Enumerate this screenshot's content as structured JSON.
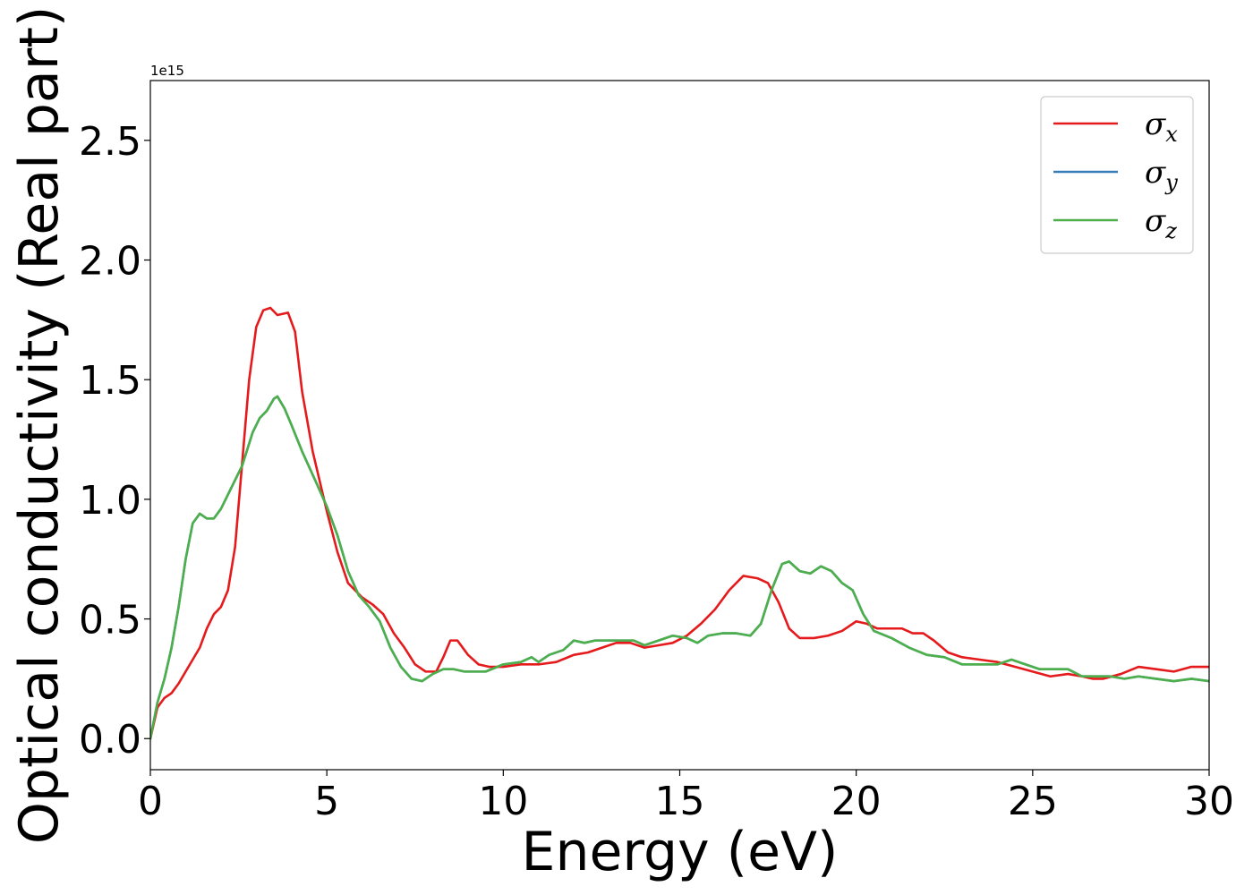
{
  "chart_data": {
    "type": "line",
    "xlabel": "Energy (eV)",
    "ylabel": "Optical conductivity (Real part)",
    "y_offset_label": "1e15",
    "xlim": [
      0,
      30
    ],
    "ylim": [
      -0.13,
      2.75
    ],
    "x_ticks": [
      0,
      5,
      10,
      15,
      20,
      25,
      30
    ],
    "x_tick_labels": [
      "0",
      "5",
      "10",
      "15",
      "20",
      "25",
      "30"
    ],
    "y_ticks": [
      0.0,
      0.5,
      1.0,
      1.5,
      2.0,
      2.5
    ],
    "y_tick_labels": [
      "0.0",
      "0.5",
      "1.0",
      "1.5",
      "2.0",
      "2.5"
    ],
    "grid": false,
    "legend_position": "top-right",
    "series": [
      {
        "name": "σx",
        "symbol": "σ",
        "subscript": "x",
        "color": "#e41a1c",
        "points": [
          [
            0,
            0
          ],
          [
            0.2,
            0.13
          ],
          [
            0.4,
            0.17
          ],
          [
            0.6,
            0.19
          ],
          [
            0.8,
            0.23
          ],
          [
            1.0,
            0.28
          ],
          [
            1.2,
            0.33
          ],
          [
            1.4,
            0.38
          ],
          [
            1.6,
            0.46
          ],
          [
            1.8,
            0.52
          ],
          [
            2.0,
            0.55
          ],
          [
            2.2,
            0.62
          ],
          [
            2.4,
            0.8
          ],
          [
            2.6,
            1.15
          ],
          [
            2.8,
            1.5
          ],
          [
            3.0,
            1.72
          ],
          [
            3.2,
            1.79
          ],
          [
            3.4,
            1.8
          ],
          [
            3.6,
            1.77
          ],
          [
            3.9,
            1.78
          ],
          [
            4.1,
            1.7
          ],
          [
            4.3,
            1.45
          ],
          [
            4.6,
            1.2
          ],
          [
            5.0,
            0.95
          ],
          [
            5.3,
            0.78
          ],
          [
            5.6,
            0.65
          ],
          [
            6.0,
            0.59
          ],
          [
            6.3,
            0.56
          ],
          [
            6.6,
            0.52
          ],
          [
            6.9,
            0.44
          ],
          [
            7.2,
            0.38
          ],
          [
            7.5,
            0.31
          ],
          [
            7.8,
            0.28
          ],
          [
            8.1,
            0.28
          ],
          [
            8.3,
            0.34
          ],
          [
            8.5,
            0.41
          ],
          [
            8.7,
            0.41
          ],
          [
            9.0,
            0.35
          ],
          [
            9.3,
            0.31
          ],
          [
            9.6,
            0.3
          ],
          [
            10.0,
            0.3
          ],
          [
            10.5,
            0.31
          ],
          [
            11.0,
            0.31
          ],
          [
            11.5,
            0.32
          ],
          [
            12.0,
            0.35
          ],
          [
            12.4,
            0.36
          ],
          [
            12.8,
            0.38
          ],
          [
            13.2,
            0.4
          ],
          [
            13.6,
            0.4
          ],
          [
            14.0,
            0.38
          ],
          [
            14.4,
            0.39
          ],
          [
            14.8,
            0.4
          ],
          [
            15.2,
            0.43
          ],
          [
            15.6,
            0.48
          ],
          [
            16.0,
            0.54
          ],
          [
            16.4,
            0.62
          ],
          [
            16.8,
            0.68
          ],
          [
            17.2,
            0.67
          ],
          [
            17.5,
            0.65
          ],
          [
            17.8,
            0.57
          ],
          [
            18.1,
            0.46
          ],
          [
            18.4,
            0.42
          ],
          [
            18.8,
            0.42
          ],
          [
            19.2,
            0.43
          ],
          [
            19.6,
            0.45
          ],
          [
            20.0,
            0.49
          ],
          [
            20.3,
            0.48
          ],
          [
            20.6,
            0.46
          ],
          [
            21.0,
            0.46
          ],
          [
            21.3,
            0.46
          ],
          [
            21.6,
            0.44
          ],
          [
            21.9,
            0.44
          ],
          [
            22.2,
            0.41
          ],
          [
            22.6,
            0.36
          ],
          [
            23.0,
            0.34
          ],
          [
            23.5,
            0.33
          ],
          [
            24.0,
            0.32
          ],
          [
            24.5,
            0.3
          ],
          [
            25.0,
            0.28
          ],
          [
            25.5,
            0.26
          ],
          [
            26.0,
            0.27
          ],
          [
            26.4,
            0.26
          ],
          [
            26.7,
            0.25
          ],
          [
            27.0,
            0.25
          ],
          [
            27.5,
            0.27
          ],
          [
            28.0,
            0.3
          ],
          [
            28.5,
            0.29
          ],
          [
            29.0,
            0.28
          ],
          [
            29.5,
            0.3
          ],
          [
            30.0,
            0.3
          ]
        ]
      },
      {
        "name": "σy",
        "symbol": "σ",
        "subscript": "y",
        "color": "#377eb8",
        "points": [
          [
            0,
            0
          ],
          [
            0.2,
            0.15
          ],
          [
            0.4,
            0.25
          ],
          [
            0.6,
            0.38
          ],
          [
            0.8,
            0.55
          ],
          [
            1.0,
            0.75
          ],
          [
            1.2,
            0.9
          ],
          [
            1.4,
            0.94
          ],
          [
            1.6,
            0.92
          ],
          [
            1.8,
            0.92
          ],
          [
            2.0,
            0.96
          ],
          [
            2.3,
            1.05
          ],
          [
            2.6,
            1.14
          ],
          [
            2.9,
            1.28
          ],
          [
            3.1,
            1.34
          ],
          [
            3.3,
            1.37
          ],
          [
            3.5,
            1.42
          ],
          [
            3.6,
            1.43
          ],
          [
            3.8,
            1.38
          ],
          [
            4.0,
            1.31
          ],
          [
            4.3,
            1.2
          ],
          [
            4.7,
            1.07
          ],
          [
            5.0,
            0.97
          ],
          [
            5.3,
            0.85
          ],
          [
            5.6,
            0.7
          ],
          [
            5.9,
            0.6
          ],
          [
            6.2,
            0.55
          ],
          [
            6.5,
            0.49
          ],
          [
            6.8,
            0.38
          ],
          [
            7.1,
            0.3
          ],
          [
            7.4,
            0.25
          ],
          [
            7.7,
            0.24
          ],
          [
            8.0,
            0.27
          ],
          [
            8.3,
            0.29
          ],
          [
            8.6,
            0.29
          ],
          [
            8.9,
            0.28
          ],
          [
            9.2,
            0.28
          ],
          [
            9.5,
            0.28
          ],
          [
            10.0,
            0.31
          ],
          [
            10.5,
            0.32
          ],
          [
            10.8,
            0.34
          ],
          [
            11.0,
            0.32
          ],
          [
            11.3,
            0.35
          ],
          [
            11.7,
            0.37
          ],
          [
            12.0,
            0.41
          ],
          [
            12.3,
            0.4
          ],
          [
            12.6,
            0.41
          ],
          [
            13.0,
            0.41
          ],
          [
            13.4,
            0.41
          ],
          [
            13.7,
            0.41
          ],
          [
            14.0,
            0.39
          ],
          [
            14.4,
            0.41
          ],
          [
            14.8,
            0.43
          ],
          [
            15.2,
            0.42
          ],
          [
            15.5,
            0.4
          ],
          [
            15.8,
            0.43
          ],
          [
            16.2,
            0.44
          ],
          [
            16.6,
            0.44
          ],
          [
            17.0,
            0.43
          ],
          [
            17.3,
            0.48
          ],
          [
            17.6,
            0.62
          ],
          [
            17.9,
            0.73
          ],
          [
            18.1,
            0.74
          ],
          [
            18.4,
            0.7
          ],
          [
            18.7,
            0.69
          ],
          [
            19.0,
            0.72
          ],
          [
            19.3,
            0.7
          ],
          [
            19.6,
            0.65
          ],
          [
            19.9,
            0.62
          ],
          [
            20.2,
            0.52
          ],
          [
            20.5,
            0.45
          ],
          [
            21.0,
            0.42
          ],
          [
            21.5,
            0.38
          ],
          [
            22.0,
            0.35
          ],
          [
            22.5,
            0.34
          ],
          [
            23.0,
            0.31
          ],
          [
            23.5,
            0.31
          ],
          [
            24.0,
            0.31
          ],
          [
            24.4,
            0.33
          ],
          [
            24.8,
            0.31
          ],
          [
            25.2,
            0.29
          ],
          [
            25.6,
            0.29
          ],
          [
            26.0,
            0.29
          ],
          [
            26.4,
            0.26
          ],
          [
            26.8,
            0.26
          ],
          [
            27.2,
            0.26
          ],
          [
            27.6,
            0.25
          ],
          [
            28.0,
            0.26
          ],
          [
            28.5,
            0.25
          ],
          [
            29.0,
            0.24
          ],
          [
            29.5,
            0.25
          ],
          [
            30.0,
            0.24
          ]
        ]
      },
      {
        "name": "σz",
        "symbol": "σ",
        "subscript": "z",
        "color": "#4daf4a",
        "points": [
          [
            0,
            0
          ],
          [
            0.2,
            0.15
          ],
          [
            0.4,
            0.25
          ],
          [
            0.6,
            0.38
          ],
          [
            0.8,
            0.55
          ],
          [
            1.0,
            0.75
          ],
          [
            1.2,
            0.9
          ],
          [
            1.4,
            0.94
          ],
          [
            1.6,
            0.92
          ],
          [
            1.8,
            0.92
          ],
          [
            2.0,
            0.96
          ],
          [
            2.3,
            1.05
          ],
          [
            2.6,
            1.14
          ],
          [
            2.9,
            1.28
          ],
          [
            3.1,
            1.34
          ],
          [
            3.3,
            1.37
          ],
          [
            3.5,
            1.42
          ],
          [
            3.6,
            1.43
          ],
          [
            3.8,
            1.38
          ],
          [
            4.0,
            1.31
          ],
          [
            4.3,
            1.2
          ],
          [
            4.7,
            1.07
          ],
          [
            5.0,
            0.97
          ],
          [
            5.3,
            0.85
          ],
          [
            5.6,
            0.7
          ],
          [
            5.9,
            0.6
          ],
          [
            6.2,
            0.55
          ],
          [
            6.5,
            0.49
          ],
          [
            6.8,
            0.38
          ],
          [
            7.1,
            0.3
          ],
          [
            7.4,
            0.25
          ],
          [
            7.7,
            0.24
          ],
          [
            8.0,
            0.27
          ],
          [
            8.3,
            0.29
          ],
          [
            8.6,
            0.29
          ],
          [
            8.9,
            0.28
          ],
          [
            9.2,
            0.28
          ],
          [
            9.5,
            0.28
          ],
          [
            10.0,
            0.31
          ],
          [
            10.5,
            0.32
          ],
          [
            10.8,
            0.34
          ],
          [
            11.0,
            0.32
          ],
          [
            11.3,
            0.35
          ],
          [
            11.7,
            0.37
          ],
          [
            12.0,
            0.41
          ],
          [
            12.3,
            0.4
          ],
          [
            12.6,
            0.41
          ],
          [
            13.0,
            0.41
          ],
          [
            13.4,
            0.41
          ],
          [
            13.7,
            0.41
          ],
          [
            14.0,
            0.39
          ],
          [
            14.4,
            0.41
          ],
          [
            14.8,
            0.43
          ],
          [
            15.2,
            0.42
          ],
          [
            15.5,
            0.4
          ],
          [
            15.8,
            0.43
          ],
          [
            16.2,
            0.44
          ],
          [
            16.6,
            0.44
          ],
          [
            17.0,
            0.43
          ],
          [
            17.3,
            0.48
          ],
          [
            17.6,
            0.62
          ],
          [
            17.9,
            0.73
          ],
          [
            18.1,
            0.74
          ],
          [
            18.4,
            0.7
          ],
          [
            18.7,
            0.69
          ],
          [
            19.0,
            0.72
          ],
          [
            19.3,
            0.7
          ],
          [
            19.6,
            0.65
          ],
          [
            19.9,
            0.62
          ],
          [
            20.2,
            0.52
          ],
          [
            20.5,
            0.45
          ],
          [
            21.0,
            0.42
          ],
          [
            21.5,
            0.38
          ],
          [
            22.0,
            0.35
          ],
          [
            22.5,
            0.34
          ],
          [
            23.0,
            0.31
          ],
          [
            23.5,
            0.31
          ],
          [
            24.0,
            0.31
          ],
          [
            24.4,
            0.33
          ],
          [
            24.8,
            0.31
          ],
          [
            25.2,
            0.29
          ],
          [
            25.6,
            0.29
          ],
          [
            26.0,
            0.29
          ],
          [
            26.4,
            0.26
          ],
          [
            26.8,
            0.26
          ],
          [
            27.2,
            0.26
          ],
          [
            27.6,
            0.25
          ],
          [
            28.0,
            0.26
          ],
          [
            28.5,
            0.25
          ],
          [
            29.0,
            0.24
          ],
          [
            29.5,
            0.25
          ],
          [
            30.0,
            0.24
          ]
        ]
      }
    ]
  }
}
